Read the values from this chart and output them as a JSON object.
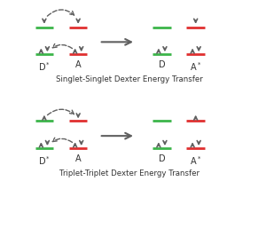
{
  "fig_width": 3.0,
  "fig_height": 2.84,
  "dpi": 100,
  "background": "#ffffff",
  "title1": "Singlet-Singlet Dexter Energy Transfer",
  "title2": "Triplet-Triplet Dexter Energy Transfer",
  "green": "#3cb54a",
  "red": "#e03030",
  "arrow_color": "#606060",
  "text_color": "#333333",
  "xlim": [
    0,
    10
  ],
  "ylim": [
    0,
    10
  ]
}
